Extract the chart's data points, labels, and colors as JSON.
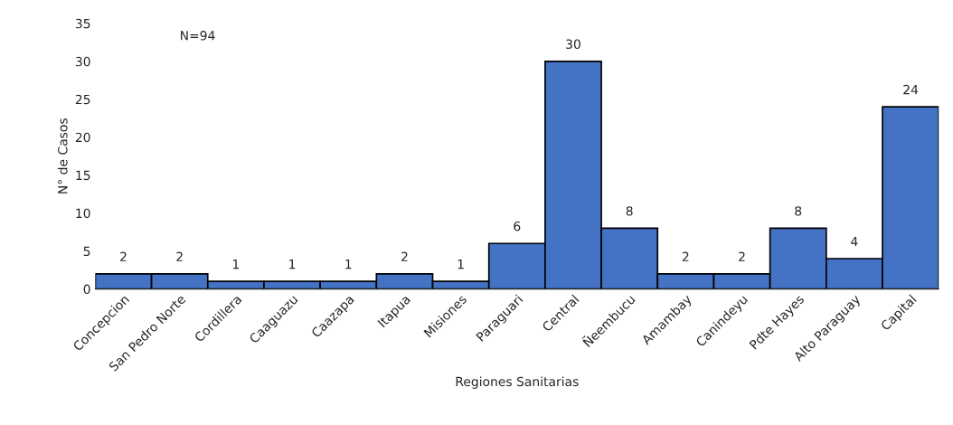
{
  "chart_data": {
    "type": "bar",
    "xlabel": "Regiones Sanitarias",
    "ylabel": "N° de Casos",
    "categories": [
      "Concepcion",
      "San Pedro Norte",
      "Cordillera",
      "Caaguazu",
      "Caazapa",
      "Itapua",
      "Misiones",
      "Paraguari",
      "Central",
      "Ñeembucu",
      "Amambay",
      "Canindeyu",
      "Pdte Hayes",
      "Alto Paraguay",
      "Capital"
    ],
    "values": [
      2,
      2,
      1,
      1,
      1,
      2,
      1,
      6,
      30,
      8,
      2,
      2,
      8,
      4,
      24
    ],
    "color": "#4472c4",
    "ylim": [
      0,
      35
    ],
    "yticks": [
      0,
      5,
      10,
      15,
      20,
      25,
      30,
      35
    ],
    "data_labels": true,
    "grid": false,
    "legend": false,
    "annotations": [
      "N=94"
    ]
  }
}
